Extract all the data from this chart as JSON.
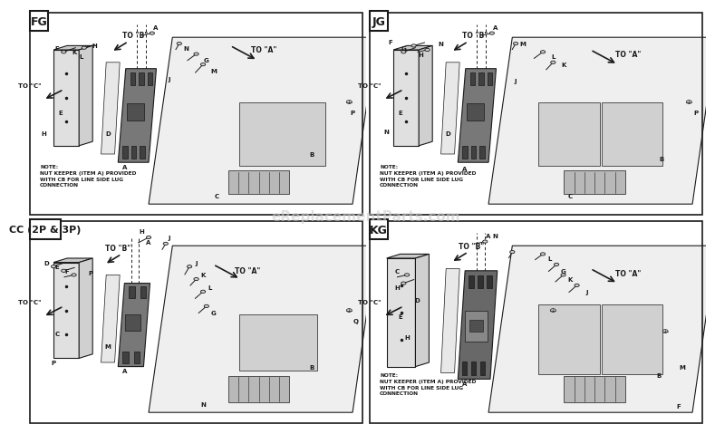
{
  "bg_color": "#ffffff",
  "line_color": "#1a1a1a",
  "fill_light": "#f0f0f0",
  "fill_mid": "#d8d8d8",
  "fill_dark": "#888888",
  "watermark": "eReplacementParts.com",
  "watermark_color": "#cccccc",
  "panels": {
    "FG": {
      "label": "FG",
      "lw": 1.5,
      "label_fs": 9
    },
    "JG": {
      "label": "JG",
      "lw": 1.5,
      "label_fs": 9
    },
    "CC": {
      "label": "CC (2P & 3P)",
      "lw": 1.5,
      "label_fs": 8
    },
    "KG": {
      "label": "KG",
      "lw": 1.5,
      "label_fs": 9
    }
  },
  "note_fg": "NOTE:\nNUT KEEPER (ITEM A) PROVIDED\nWITH CB FOR LINE SIDE LUG\nCONNECTION",
  "note_jg": "NOTE:\nNUT KEEPER (ITEM A) PROVIDED\nWITH CB FOR LINE SIDE LUG\nCONNECTION",
  "note_kg": "NOTE:\nNUT KEEPER (ITEM A) PROVIDED\nWITH CB FOR LINE SIDE LUG\nCONNECTION"
}
